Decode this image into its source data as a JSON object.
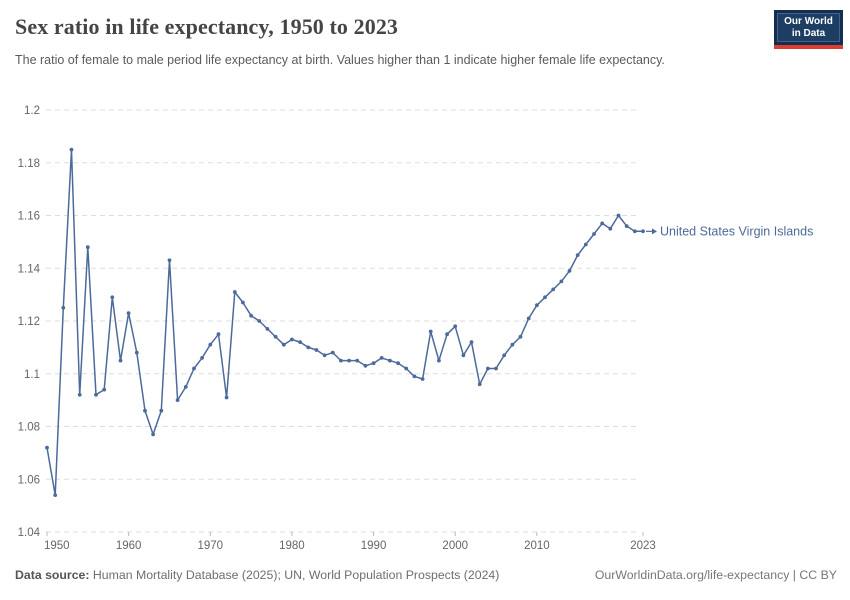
{
  "header": {
    "title": "Sex ratio in life expectancy, 1950 to 2023",
    "subtitle": "The ratio of female to male period life expectancy at birth. Values higher than 1 indicate higher female life expectancy.",
    "logo": {
      "line1": "Our World",
      "line2": "in Data"
    }
  },
  "chart_data": {
    "type": "line",
    "title": "Sex ratio in life expectancy, 1950 to 2023",
    "xlabel": "",
    "ylabel": "",
    "xlim": [
      1950,
      2023
    ],
    "ylim": [
      1.04,
      1.2
    ],
    "grid": true,
    "legend_position": "end-of-line-label",
    "x_ticks": {
      "values": [
        1950,
        1960,
        1970,
        1980,
        1990,
        2000,
        2010,
        2023
      ],
      "labels": [
        "1950",
        "1960",
        "1970",
        "1980",
        "1990",
        "2000",
        "2010",
        "2023"
      ]
    },
    "y_ticks": {
      "values": [
        1.04,
        1.06,
        1.08,
        1.1,
        1.12,
        1.14,
        1.16,
        1.18,
        1.2
      ],
      "labels": [
        "1.04",
        "1.06",
        "1.08",
        "1.1",
        "1.12",
        "1.14",
        "1.16",
        "1.18",
        "1.2"
      ]
    },
    "series": [
      {
        "name": "United States Virgin Islands",
        "color": "#4C6A9C",
        "label_color": "#4C6A9C",
        "x": [
          1950,
          1951,
          1952,
          1953,
          1954,
          1955,
          1956,
          1957,
          1958,
          1959,
          1960,
          1961,
          1962,
          1963,
          1964,
          1965,
          1966,
          1967,
          1968,
          1969,
          1970,
          1971,
          1972,
          1973,
          1974,
          1975,
          1976,
          1977,
          1978,
          1979,
          1980,
          1981,
          1982,
          1983,
          1984,
          1985,
          1986,
          1987,
          1988,
          1989,
          1990,
          1991,
          1992,
          1993,
          1994,
          1995,
          1996,
          1997,
          1998,
          1999,
          2000,
          2001,
          2002,
          2003,
          2004,
          2005,
          2006,
          2007,
          2008,
          2009,
          2010,
          2011,
          2012,
          2013,
          2014,
          2015,
          2016,
          2017,
          2018,
          2019,
          2020,
          2021,
          2022,
          2023
        ],
        "values": [
          1.072,
          1.054,
          1.125,
          1.185,
          1.092,
          1.148,
          1.092,
          1.094,
          1.129,
          1.105,
          1.123,
          1.108,
          1.086,
          1.077,
          1.086,
          1.143,
          1.09,
          1.095,
          1.102,
          1.106,
          1.111,
          1.115,
          1.091,
          1.131,
          1.127,
          1.122,
          1.12,
          1.117,
          1.114,
          1.111,
          1.113,
          1.112,
          1.11,
          1.109,
          1.107,
          1.108,
          1.105,
          1.105,
          1.105,
          1.103,
          1.104,
          1.106,
          1.105,
          1.104,
          1.102,
          1.099,
          1.098,
          1.116,
          1.105,
          1.115,
          1.118,
          1.107,
          1.112,
          1.096,
          1.102,
          1.102,
          1.107,
          1.111,
          1.114,
          1.121,
          1.126,
          1.129,
          1.132,
          1.135,
          1.139,
          1.145,
          1.149,
          1.153,
          1.157,
          1.155,
          1.16,
          1.156,
          1.154,
          1.154
        ]
      }
    ],
    "colors": {
      "gridline": "#dddddd",
      "tick_mark": "#bbbbbb",
      "tick_label": "#666666"
    }
  },
  "footer": {
    "datasource_label": "Data source:",
    "datasource_text": " Human Mortality Database (2025); UN, World Population Prospects (2024)",
    "credit": "OurWorldinData.org/life-expectancy | CC BY"
  }
}
